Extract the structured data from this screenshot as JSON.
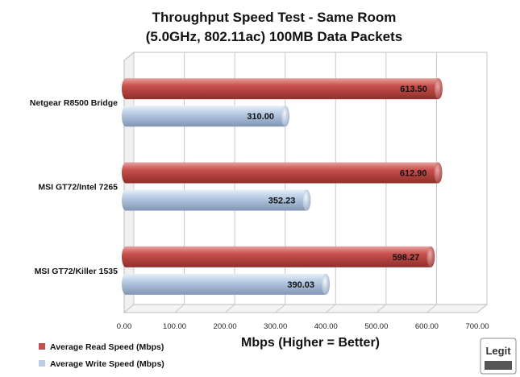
{
  "chart_data": {
    "type": "bar",
    "orientation": "horizontal",
    "title": [
      "Throughput Speed Test - Same Room",
      "(5.0GHz, 802.11ac)  100MB Data Packets"
    ],
    "xlabel": "Mbps (Higher = Better)",
    "xlim": [
      0,
      700
    ],
    "tick_values": [
      0,
      100,
      200,
      300,
      400,
      500,
      600,
      700
    ],
    "tick_labels": [
      "0.00",
      "100.00",
      "200.00",
      "300.00",
      "400.00",
      "500.00",
      "600.00",
      "700.00"
    ],
    "categories": [
      "Netgear R8500 Bridge",
      "MSI GT72/Intel 7265",
      "MSI GT72/Killer 1535"
    ],
    "series": [
      {
        "name": "Average Read Speed (Mbps)",
        "values": [
          613.5,
          612.9,
          598.27
        ],
        "labels": [
          "613.50",
          "612.90",
          "598.27"
        ],
        "color": "#c0504d"
      },
      {
        "name": "Average Write Speed (Mbps)",
        "values": [
          310.0,
          352.23,
          390.03
        ],
        "labels": [
          "310.00",
          "352.23",
          "390.03"
        ],
        "color": "#b9cde5"
      }
    ],
    "grid": true,
    "legend_position": "bottom-left"
  },
  "logo": {
    "text": "Legit",
    "icon": "legit-reviews-logo-icon"
  }
}
